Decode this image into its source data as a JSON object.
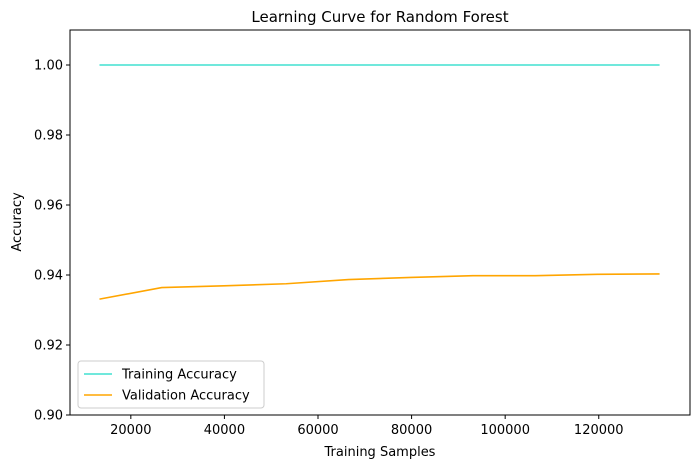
{
  "chart_data": {
    "type": "line",
    "title": "Learning Curve for Random Forest",
    "xlabel": "Training Samples",
    "ylabel": "Accuracy",
    "xlim": [
      7000,
      139500
    ],
    "ylim": [
      0.9,
      1.01
    ],
    "x_ticks": [
      20000,
      40000,
      60000,
      80000,
      100000,
      120000
    ],
    "y_ticks": [
      0.9,
      0.92,
      0.94,
      0.96,
      0.98,
      1.0
    ],
    "x_tick_labels": [
      "20000",
      "40000",
      "60000",
      "80000",
      "100000",
      "120000"
    ],
    "y_tick_labels": [
      "0.90",
      "0.92",
      "0.94",
      "0.96",
      "0.98",
      "1.00"
    ],
    "grid": false,
    "legend_position": "bottom-left",
    "x": [
      13300,
      26600,
      39900,
      53200,
      66500,
      79800,
      93100,
      106400,
      119700,
      133000
    ],
    "series": [
      {
        "name": "Training Accuracy",
        "color": "#40e0d0",
        "values": [
          1.0,
          1.0,
          1.0,
          1.0,
          1.0,
          1.0,
          1.0,
          1.0,
          1.0,
          1.0
        ]
      },
      {
        "name": "Validation Accuracy",
        "color": "#ffa500",
        "values": [
          0.9331,
          0.9364,
          0.9369,
          0.9375,
          0.9387,
          0.9393,
          0.9398,
          0.9398,
          0.9402,
          0.9403
        ]
      }
    ]
  }
}
